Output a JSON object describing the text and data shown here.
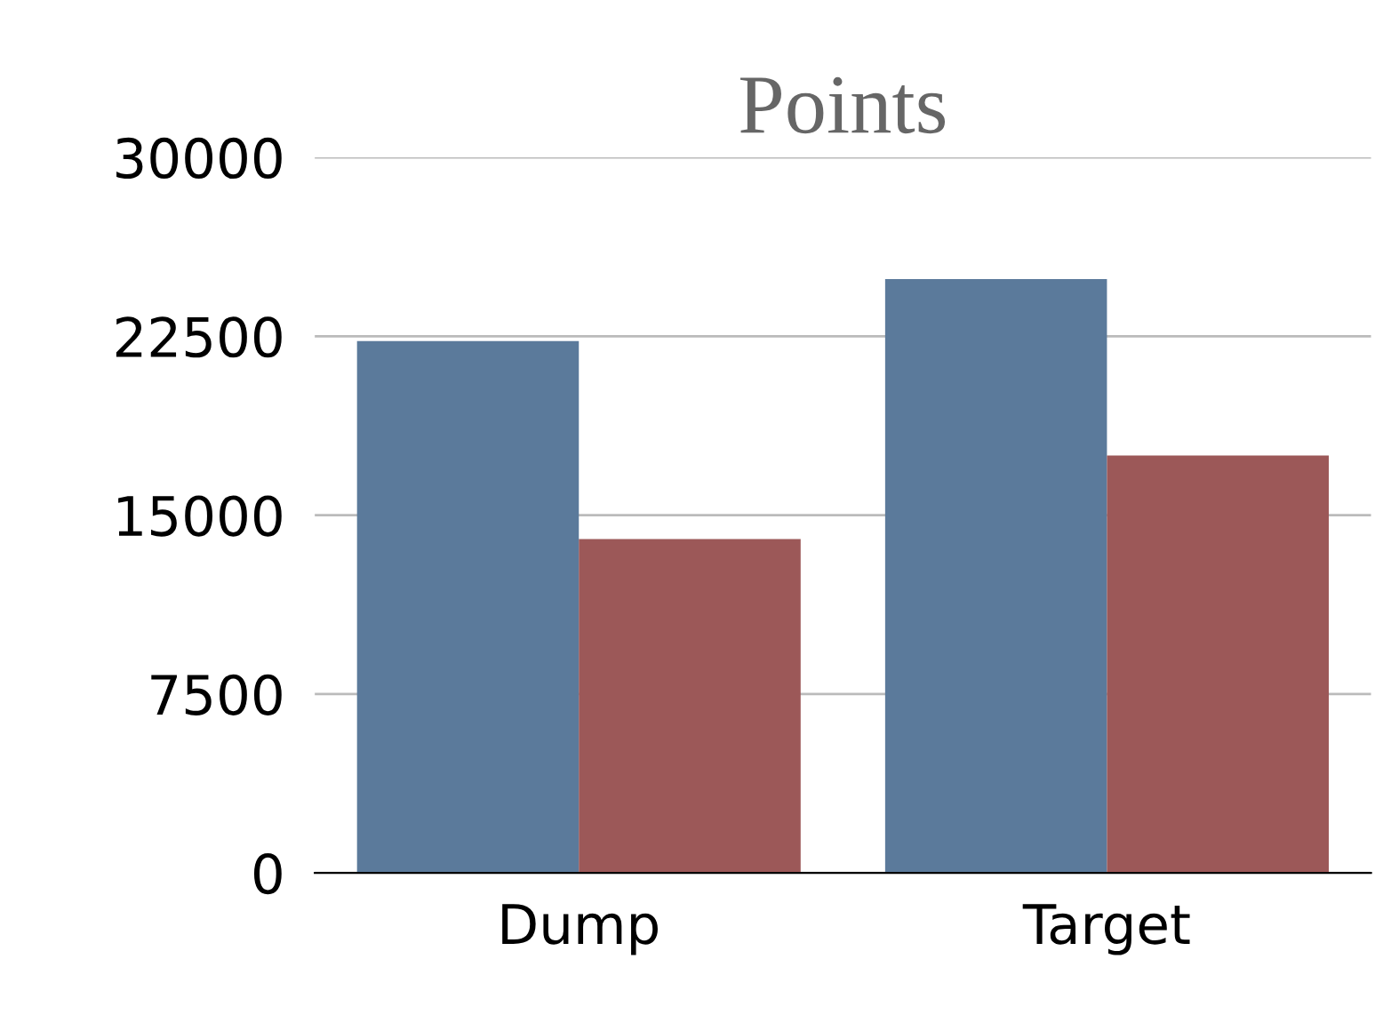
{
  "chart_data": {
    "type": "bar",
    "title": "Points",
    "categories": [
      "Dump",
      "Target"
    ],
    "series": [
      {
        "color": "#5b7a9b",
        "values": [
          22300,
          24900
        ]
      },
      {
        "color": "#9c5858",
        "values": [
          14000,
          17500
        ]
      }
    ],
    "ylim": [
      0,
      30000
    ],
    "yticks": [
      0,
      7500,
      15000,
      22500,
      30000
    ],
    "grid": "y",
    "legend": false
  }
}
